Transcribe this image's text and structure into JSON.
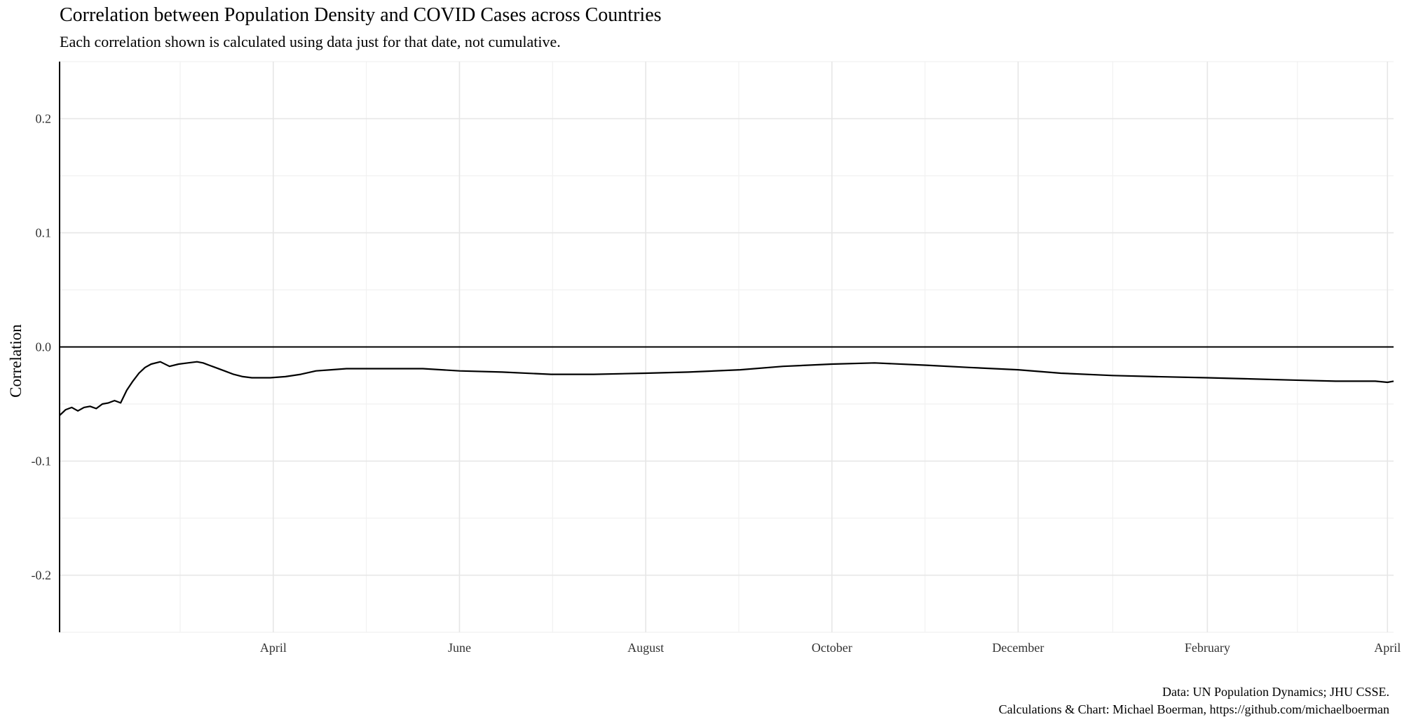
{
  "chart_data": {
    "type": "line",
    "title": "Correlation between Population Density and COVID Cases across Countries",
    "subtitle": "Each correlation shown is calculated using data just for that date, not cumulative.",
    "ylabel": "Correlation",
    "xlabel": "",
    "caption": [
      "Data: UN Population Dynamics; JHU CSSE.",
      "Calculations & Chart: Michael Boerman, https://github.com/michaelboerman"
    ],
    "ylim": [
      -0.25,
      0.25
    ],
    "xlim": [
      "2020-01-22",
      "2021-04-03"
    ],
    "y_ticks": [
      0.2,
      0.1,
      0.0,
      -0.1,
      -0.2
    ],
    "y_tick_labels": [
      "0.2",
      "0.1",
      "0.0",
      "-0.1",
      "-0.2"
    ],
    "x_ticks": [
      "2020-04-01",
      "2020-06-01",
      "2020-08-01",
      "2020-10-01",
      "2020-12-01",
      "2021-02-01",
      "2021-04-01"
    ],
    "x_tick_labels": [
      "April",
      "June",
      "August",
      "October",
      "December",
      "February",
      "April"
    ],
    "grid": true,
    "reference_line": 0.0,
    "series": [
      {
        "x": [
          "2020-01-22",
          "2020-01-24",
          "2020-01-26",
          "2020-01-28",
          "2020-01-30",
          "2020-02-01",
          "2020-02-03",
          "2020-02-05",
          "2020-02-07",
          "2020-02-09",
          "2020-02-11",
          "2020-02-13",
          "2020-02-15",
          "2020-02-17",
          "2020-02-19",
          "2020-02-21",
          "2020-02-24",
          "2020-02-27",
          "2020-03-01",
          "2020-03-04",
          "2020-03-07",
          "2020-03-09",
          "2020-03-11",
          "2020-03-13",
          "2020-03-16",
          "2020-03-19",
          "2020-03-22",
          "2020-03-25",
          "2020-03-28",
          "2020-03-31",
          "2020-04-05",
          "2020-04-10",
          "2020-04-15",
          "2020-04-20",
          "2020-04-25",
          "2020-04-30",
          "2020-05-10",
          "2020-05-20",
          "2020-06-01",
          "2020-06-15",
          "2020-07-01",
          "2020-07-15",
          "2020-08-01",
          "2020-08-15",
          "2020-09-01",
          "2020-09-15",
          "2020-10-01",
          "2020-10-15",
          "2020-11-01",
          "2020-11-15",
          "2020-12-01",
          "2020-12-15",
          "2021-01-01",
          "2021-01-15",
          "2021-02-01",
          "2021-02-15",
          "2021-03-01",
          "2021-03-15",
          "2021-03-28",
          "2021-04-01",
          "2021-04-03"
        ],
        "y": [
          -0.06,
          -0.055,
          -0.053,
          -0.056,
          -0.053,
          -0.052,
          -0.054,
          -0.05,
          -0.049,
          -0.047,
          -0.049,
          -0.038,
          -0.03,
          -0.023,
          -0.018,
          -0.015,
          -0.013,
          -0.017,
          -0.015,
          -0.014,
          -0.013,
          -0.014,
          -0.016,
          -0.018,
          -0.021,
          -0.024,
          -0.026,
          -0.027,
          -0.027,
          -0.027,
          -0.026,
          -0.024,
          -0.021,
          -0.02,
          -0.019,
          -0.019,
          -0.019,
          -0.019,
          -0.021,
          -0.022,
          -0.024,
          -0.024,
          -0.023,
          -0.022,
          -0.02,
          -0.017,
          -0.015,
          -0.014,
          -0.016,
          -0.018,
          -0.02,
          -0.023,
          -0.025,
          -0.026,
          -0.027,
          -0.028,
          -0.029,
          -0.03,
          -0.03,
          -0.031,
          -0.03
        ]
      }
    ]
  }
}
